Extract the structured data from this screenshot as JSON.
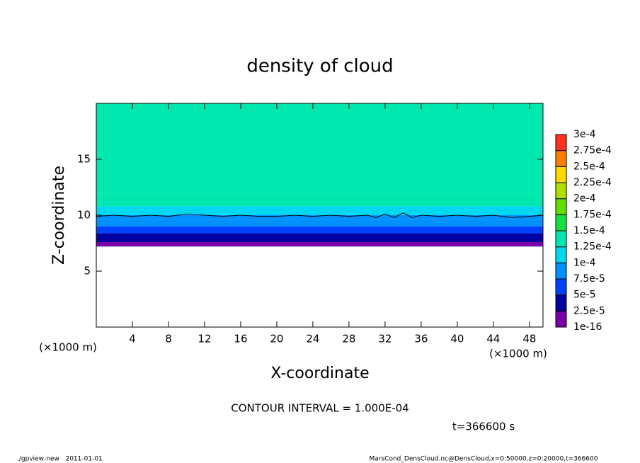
{
  "chart_data": {
    "type": "contour",
    "title": "density of cloud",
    "xlabel": "X-coordinate",
    "ylabel": "Z-coordinate",
    "xunit": "(×1000 m)",
    "yunit": "(×1000 m)",
    "xlim": [
      0,
      49.5
    ],
    "ylim": [
      0,
      20
    ],
    "xticks": [
      4,
      8,
      12,
      16,
      20,
      24,
      28,
      32,
      36,
      40,
      44,
      48
    ],
    "yticks": [
      5,
      10,
      15
    ],
    "field": {
      "z_edges": [
        7.2,
        7.6,
        8.4,
        9.0,
        9.6,
        10.0,
        10.8,
        12.0,
        20.0
      ],
      "values": [
        1e-05,
        3.5e-05,
        6e-05,
        8.5e-05,
        9.5e-05,
        0.00011,
        0.00013,
        0.000145
      ]
    },
    "contour": {
      "x": [
        0,
        2,
        4,
        6,
        8,
        10,
        12,
        14,
        16,
        18,
        20,
        22,
        24,
        26,
        28,
        30,
        31,
        32,
        33,
        34,
        35,
        36,
        38,
        40,
        42,
        44,
        46,
        48,
        49.5
      ],
      "z": [
        9.9,
        10.0,
        9.9,
        10.0,
        9.9,
        10.1,
        10.0,
        9.9,
        10.0,
        9.9,
        9.9,
        10.0,
        9.9,
        10.0,
        9.9,
        10.0,
        9.8,
        10.1,
        9.8,
        10.2,
        9.8,
        10.0,
        9.9,
        10.0,
        9.9,
        10.0,
        9.8,
        9.9,
        10.0
      ]
    },
    "colorbar": {
      "ticks": [
        {
          "value": 1e-16,
          "label": "1e-16"
        },
        {
          "value": 2.5e-05,
          "label": "2.5e-5"
        },
        {
          "value": 5e-05,
          "label": "5e-5"
        },
        {
          "value": 7.5e-05,
          "label": "7.5e-5"
        },
        {
          "value": 0.0001,
          "label": "1e-4"
        },
        {
          "value": 0.000125,
          "label": "1.25e-4"
        },
        {
          "value": 0.00015,
          "label": "1.5e-4"
        },
        {
          "value": 0.000175,
          "label": "1.75e-4"
        },
        {
          "value": 0.0002,
          "label": "2e-4"
        },
        {
          "value": 0.000225,
          "label": "2.25e-4"
        },
        {
          "value": 0.00025,
          "label": "2.5e-4"
        },
        {
          "value": 0.000275,
          "label": "2.75e-4"
        },
        {
          "value": 0.0003,
          "label": "3e-4"
        }
      ],
      "colors": [
        "#7a00a8",
        "#0000a0",
        "#0040ff",
        "#0090ff",
        "#00d8f0",
        "#00e8b0",
        "#14e040",
        "#60e000",
        "#b0e000",
        "#ffd800",
        "#ff8000",
        "#ff3020"
      ]
    },
    "contour_interval": "CONTOUR INTERVAL = 1.000E-04",
    "time_label": "t=366600 s",
    "footer_left": "./gpview-new   2011-01-01",
    "footer_right": "MarsCond_DensCloud.nc@DensCloud,x=0:50000,z=0:20000,t=366600"
  }
}
